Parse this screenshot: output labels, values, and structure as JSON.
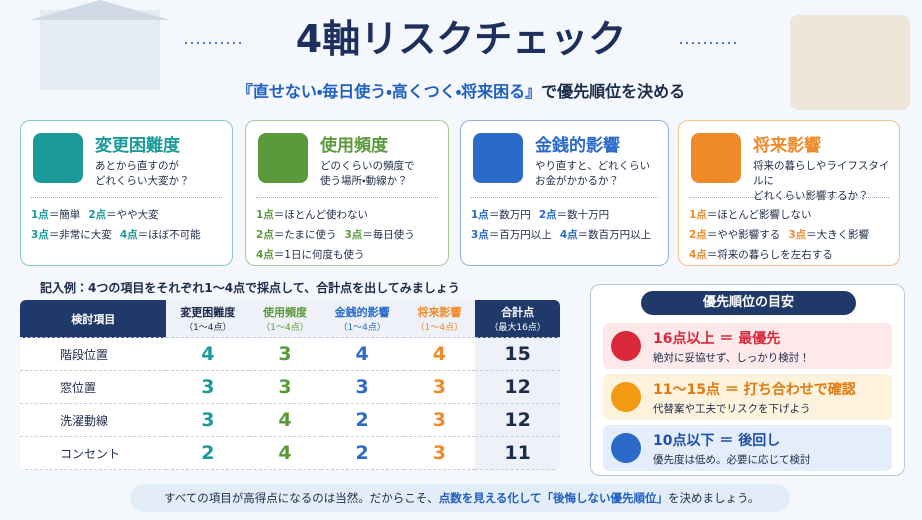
{
  "header": {
    "title": "4軸リスクチェック",
    "subtitle_emphasis": "『直せない・毎日使う・高くつく・将来困る』",
    "subtitle_rest": "で優先順位を決める"
  },
  "cards": [
    {
      "title": "変更困難度",
      "description": "あとから直すのが\nどれくらい大変か？",
      "scale": [
        {
          "point": "1点",
          "text": "＝簡単"
        },
        {
          "point": "2点",
          "text": "＝やや大変"
        },
        {
          "point": "3点",
          "text": "＝非常に大変"
        },
        {
          "point": "4点",
          "text": "＝ほぼ不可能"
        }
      ]
    },
    {
      "title": "使用頻度",
      "description": "どのくらいの頻度で\n使う場所・動線か？",
      "scale": [
        {
          "point": "1点",
          "text": "＝ほとんど使わない"
        },
        {
          "point": "2点",
          "text": "＝たまに使う"
        },
        {
          "point": "3点",
          "text": "＝毎日使う"
        },
        {
          "point": "4点",
          "text": "＝1日に何度も使う"
        }
      ]
    },
    {
      "title": "金銭的影響",
      "description": "やり直すと、どれくらい\nお金がかかるか？",
      "scale": [
        {
          "point": "1点",
          "text": "＝数万円"
        },
        {
          "point": "2点",
          "text": "＝数十万円"
        },
        {
          "point": "3点",
          "text": "＝百万円以上"
        },
        {
          "point": "4点",
          "text": "＝数百万円以上"
        }
      ]
    },
    {
      "title": "将来影響",
      "description": "将来の暮らしやライフスタイルに\nどれくらい影響するか？",
      "scale": [
        {
          "point": "1点",
          "text": "＝ほとんど影響しない"
        },
        {
          "point": "2点",
          "text": "＝やや影響する"
        },
        {
          "point": "3点",
          "text": "＝大きく影響"
        },
        {
          "point": "4点",
          "text": "＝将来の暮らしを左右する"
        }
      ]
    }
  ],
  "example": {
    "label": "記入例：4つの項目をそれぞれ1～4点で採点して、合計点を出してみましょう",
    "columns": [
      {
        "name": "検討項目"
      },
      {
        "name": "変更困難度",
        "sub": "（1～4点）"
      },
      {
        "name": "使用頻度",
        "sub": "（1～4点）"
      },
      {
        "name": "金銭的影響",
        "sub": "（1～4点）"
      },
      {
        "name": "将来影響",
        "sub": "（1～4点）"
      },
      {
        "name": "合計点",
        "sub": "（最大16点）"
      }
    ],
    "rows": [
      [
        "階段位置",
        4,
        3,
        4,
        4,
        15
      ],
      [
        "窓位置",
        3,
        3,
        3,
        3,
        12
      ],
      [
        "洗濯動線",
        3,
        4,
        2,
        3,
        12
      ],
      [
        "コンセント",
        2,
        4,
        2,
        3,
        11
      ]
    ]
  },
  "priority": {
    "title": "優先順位の目安",
    "levels": [
      {
        "heading": "16点以上 ＝ 最優先",
        "text": "絶対に妥協せず、しっかり検討！"
      },
      {
        "heading": "11～15点 ＝ 打ち合わせで確認",
        "text": "代替案や工夫でリスクを下げよう"
      },
      {
        "heading": "10点以下 ＝ 後回し",
        "text": "優先度は低め。必要に応じて検討"
      }
    ]
  },
  "footer": {
    "before": "すべての項目が高得点になるのは当然。だからこそ、",
    "highlight": "点数を見える化して「後悔しない優先順位」",
    "after": "を決めましょう。"
  }
}
